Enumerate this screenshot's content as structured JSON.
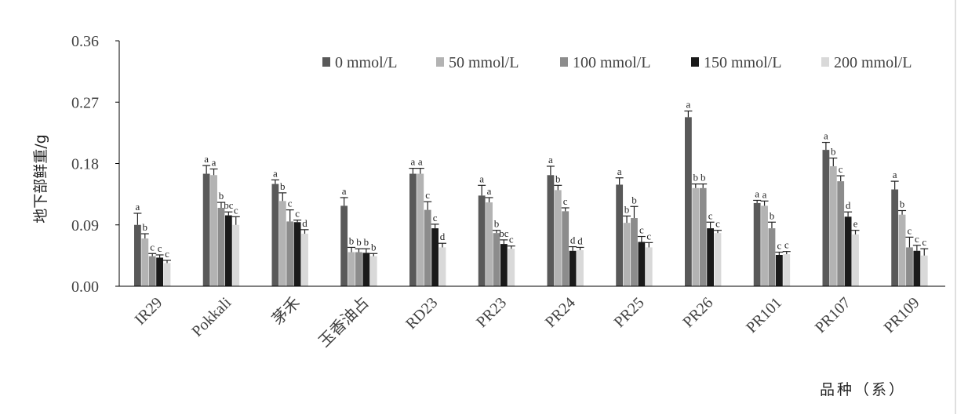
{
  "chart_data": {
    "type": "bar",
    "xlabel": "品种（系）",
    "ylabel": "地下部鲜重/g",
    "ylim": [
      0,
      0.36
    ],
    "yticks": [
      "0.00",
      "0.09",
      "0.18",
      "0.27",
      "0.36"
    ],
    "legend_position": "top-right",
    "categories": [
      "IR29",
      "Pokkali",
      "茅禾",
      "玉香油占",
      "RD23",
      "PR23",
      "PR24",
      "PR25",
      "PR26",
      "PR101",
      "PR107",
      "PR109"
    ],
    "series": [
      {
        "name": "0 mmol/L",
        "color": "#595959",
        "values": [
          0.09,
          0.165,
          0.15,
          0.118,
          0.165,
          0.133,
          0.163,
          0.149,
          0.248,
          0.122,
          0.2,
          0.142
        ],
        "errors": [
          0.017,
          0.012,
          0.006,
          0.012,
          0.008,
          0.015,
          0.013,
          0.01,
          0.009,
          0.004,
          0.011,
          0.012
        ],
        "sig": [
          "a",
          "a",
          "a",
          "a",
          "a",
          "a",
          "a",
          "a",
          "a",
          "a",
          "a",
          "a"
        ]
      },
      {
        "name": "50 mmol/L",
        "color": "#b3b3b3",
        "values": [
          0.07,
          0.163,
          0.125,
          0.05,
          0.165,
          0.123,
          0.141,
          0.093,
          0.144,
          0.118,
          0.176,
          0.105
        ],
        "errors": [
          0.007,
          0.009,
          0.012,
          0.007,
          0.008,
          0.007,
          0.007,
          0.01,
          0.006,
          0.007,
          0.012,
          0.006
        ],
        "sig": [
          "b",
          "a",
          "b",
          "b",
          "a",
          "a",
          "b",
          "b",
          "b",
          "a",
          "b",
          "b"
        ]
      },
      {
        "name": "100 mmol/L",
        "color": "#8c8c8c",
        "values": [
          0.044,
          0.115,
          0.095,
          0.05,
          0.112,
          0.078,
          0.11,
          0.1,
          0.144,
          0.085,
          0.154,
          0.057
        ],
        "errors": [
          0.004,
          0.008,
          0.017,
          0.005,
          0.012,
          0.004,
          0.005,
          0.017,
          0.006,
          0.009,
          0.008,
          0.015
        ],
        "sig": [
          "c",
          "b",
          "c",
          "b",
          "c",
          "b",
          "c",
          "b",
          "b",
          "b",
          "c",
          "c"
        ]
      },
      {
        "name": "150 mmol/L",
        "color": "#1a1a1a",
        "values": [
          0.042,
          0.104,
          0.094,
          0.049,
          0.085,
          0.062,
          0.052,
          0.065,
          0.085,
          0.046,
          0.102,
          0.052
        ],
        "errors": [
          0.004,
          0.005,
          0.003,
          0.006,
          0.006,
          0.006,
          0.006,
          0.008,
          0.009,
          0.004,
          0.007,
          0.008
        ],
        "sig": [
          "c",
          "bc",
          "c",
          "b",
          "c",
          "bc",
          "d",
          "c",
          "c",
          "c",
          "d",
          "c"
        ]
      },
      {
        "name": "200 mmol/L",
        "color": "#d9d9d9",
        "values": [
          0.034,
          0.09,
          0.077,
          0.044,
          0.057,
          0.055,
          0.053,
          0.057,
          0.078,
          0.047,
          0.076,
          0.045
        ],
        "errors": [
          0.004,
          0.012,
          0.006,
          0.004,
          0.006,
          0.004,
          0.004,
          0.007,
          0.004,
          0.004,
          0.006,
          0.01
        ],
        "sig": [
          "c",
          "c",
          "d",
          "b",
          "d",
          "c",
          "d",
          "c",
          "c",
          "c",
          "e",
          "c"
        ]
      }
    ]
  }
}
